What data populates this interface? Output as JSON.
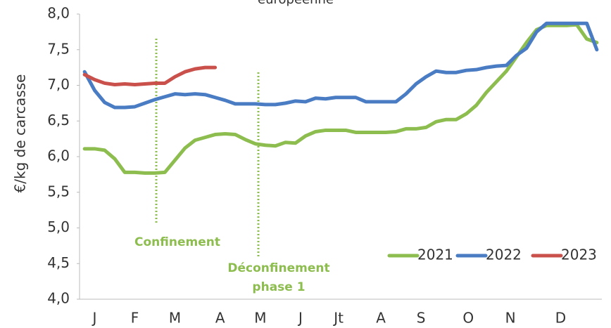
{
  "chart_data": {
    "type": "line",
    "title": "européenne",
    "y_label": "€/kg de carcasse",
    "x": [
      1,
      2,
      3,
      4,
      5,
      6,
      7,
      8,
      9,
      10,
      11,
      12,
      13,
      14,
      15,
      16,
      17,
      18,
      19,
      20,
      21,
      22,
      23,
      24,
      25,
      26,
      27,
      28,
      29,
      30,
      31,
      32,
      33,
      34,
      35,
      36,
      37,
      38,
      39,
      40,
      41,
      42,
      43,
      44,
      45,
      46,
      47,
      48,
      49,
      50,
      51,
      52
    ],
    "xlim": [
      0.5,
      52.5
    ],
    "xticks": [
      {
        "value": 2,
        "label": "J"
      },
      {
        "value": 6,
        "label": "F"
      },
      {
        "value": 10,
        "label": "M"
      },
      {
        "value": 14.5,
        "label": "A"
      },
      {
        "value": 18.5,
        "label": "M"
      },
      {
        "value": 22.5,
        "label": "J"
      },
      {
        "value": 26.3,
        "label": "Jt"
      },
      {
        "value": 30.5,
        "label": "A"
      },
      {
        "value": 34.5,
        "label": "S"
      },
      {
        "value": 39.2,
        "label": "O"
      },
      {
        "value": 43.4,
        "label": "N"
      },
      {
        "value": 48.4,
        "label": "D"
      }
    ],
    "ylim": [
      4,
      8
    ],
    "yticks": [
      {
        "value": 4,
        "label": "4,0"
      },
      {
        "value": 4.5,
        "label": "4,5"
      },
      {
        "value": 5,
        "label": "5,0"
      },
      {
        "value": 5.5,
        "label": "5,5"
      },
      {
        "value": 6,
        "label": "6,0"
      },
      {
        "value": 6.5,
        "label": "6,5"
      },
      {
        "value": 7,
        "label": "7,0"
      },
      {
        "value": 7.5,
        "label": "7,5"
      },
      {
        "value": 8,
        "label": "8,0"
      }
    ],
    "grid": false,
    "legend": "bottom-right",
    "annotations": [
      "Confinement",
      "Déconfinement",
      "phase 1"
    ],
    "series": [
      {
        "name": "2021",
        "color": "#8dbd4f",
        "values": [
          6.11,
          6.11,
          6.09,
          5.97,
          5.78,
          5.78,
          5.77,
          5.77,
          5.78,
          5.95,
          6.12,
          6.23,
          6.27,
          6.31,
          6.32,
          6.31,
          6.24,
          6.18,
          6.16,
          6.15,
          6.2,
          6.19,
          6.29,
          6.35,
          6.37,
          6.37,
          6.37,
          6.34,
          6.34,
          6.34,
          6.34,
          6.35,
          6.39,
          6.39,
          6.41,
          6.49,
          6.52,
          6.52,
          6.6,
          6.72,
          6.9,
          7.05,
          7.2,
          7.4,
          7.6,
          7.78,
          7.84,
          7.84,
          7.84,
          7.85,
          7.65,
          7.6
        ]
      },
      {
        "name": "2022",
        "color": "#4a7cc4",
        "values": [
          7.19,
          6.93,
          6.76,
          6.69,
          6.69,
          6.7,
          6.75,
          6.8,
          6.84,
          6.88,
          6.87,
          6.88,
          6.87,
          6.83,
          6.79,
          6.74,
          6.74,
          6.74,
          6.73,
          6.73,
          6.75,
          6.78,
          6.77,
          6.82,
          6.81,
          6.83,
          6.83,
          6.83,
          6.77,
          6.77,
          6.77,
          6.77,
          6.88,
          7.02,
          7.12,
          7.2,
          7.18,
          7.18,
          7.21,
          7.22,
          7.25,
          7.27,
          7.28,
          7.42,
          7.52,
          7.75,
          7.87,
          7.87,
          7.87,
          7.87,
          7.87,
          7.5
        ]
      },
      {
        "name": "2023",
        "color": "#c9504b",
        "values": [
          7.15,
          7.08,
          7.03,
          7.01,
          7.02,
          7.01,
          7.02,
          7.03,
          7.03,
          7.12,
          7.19,
          7.23,
          7.25,
          7.25,
          null,
          null,
          null,
          null,
          null,
          null,
          null,
          null,
          null,
          null,
          null,
          null,
          null,
          null,
          null,
          null,
          null,
          null,
          null,
          null,
          null,
          null,
          null,
          null,
          null,
          null,
          null,
          null,
          null,
          null,
          null,
          null,
          null,
          null,
          null,
          null,
          null,
          null
        ]
      }
    ]
  }
}
